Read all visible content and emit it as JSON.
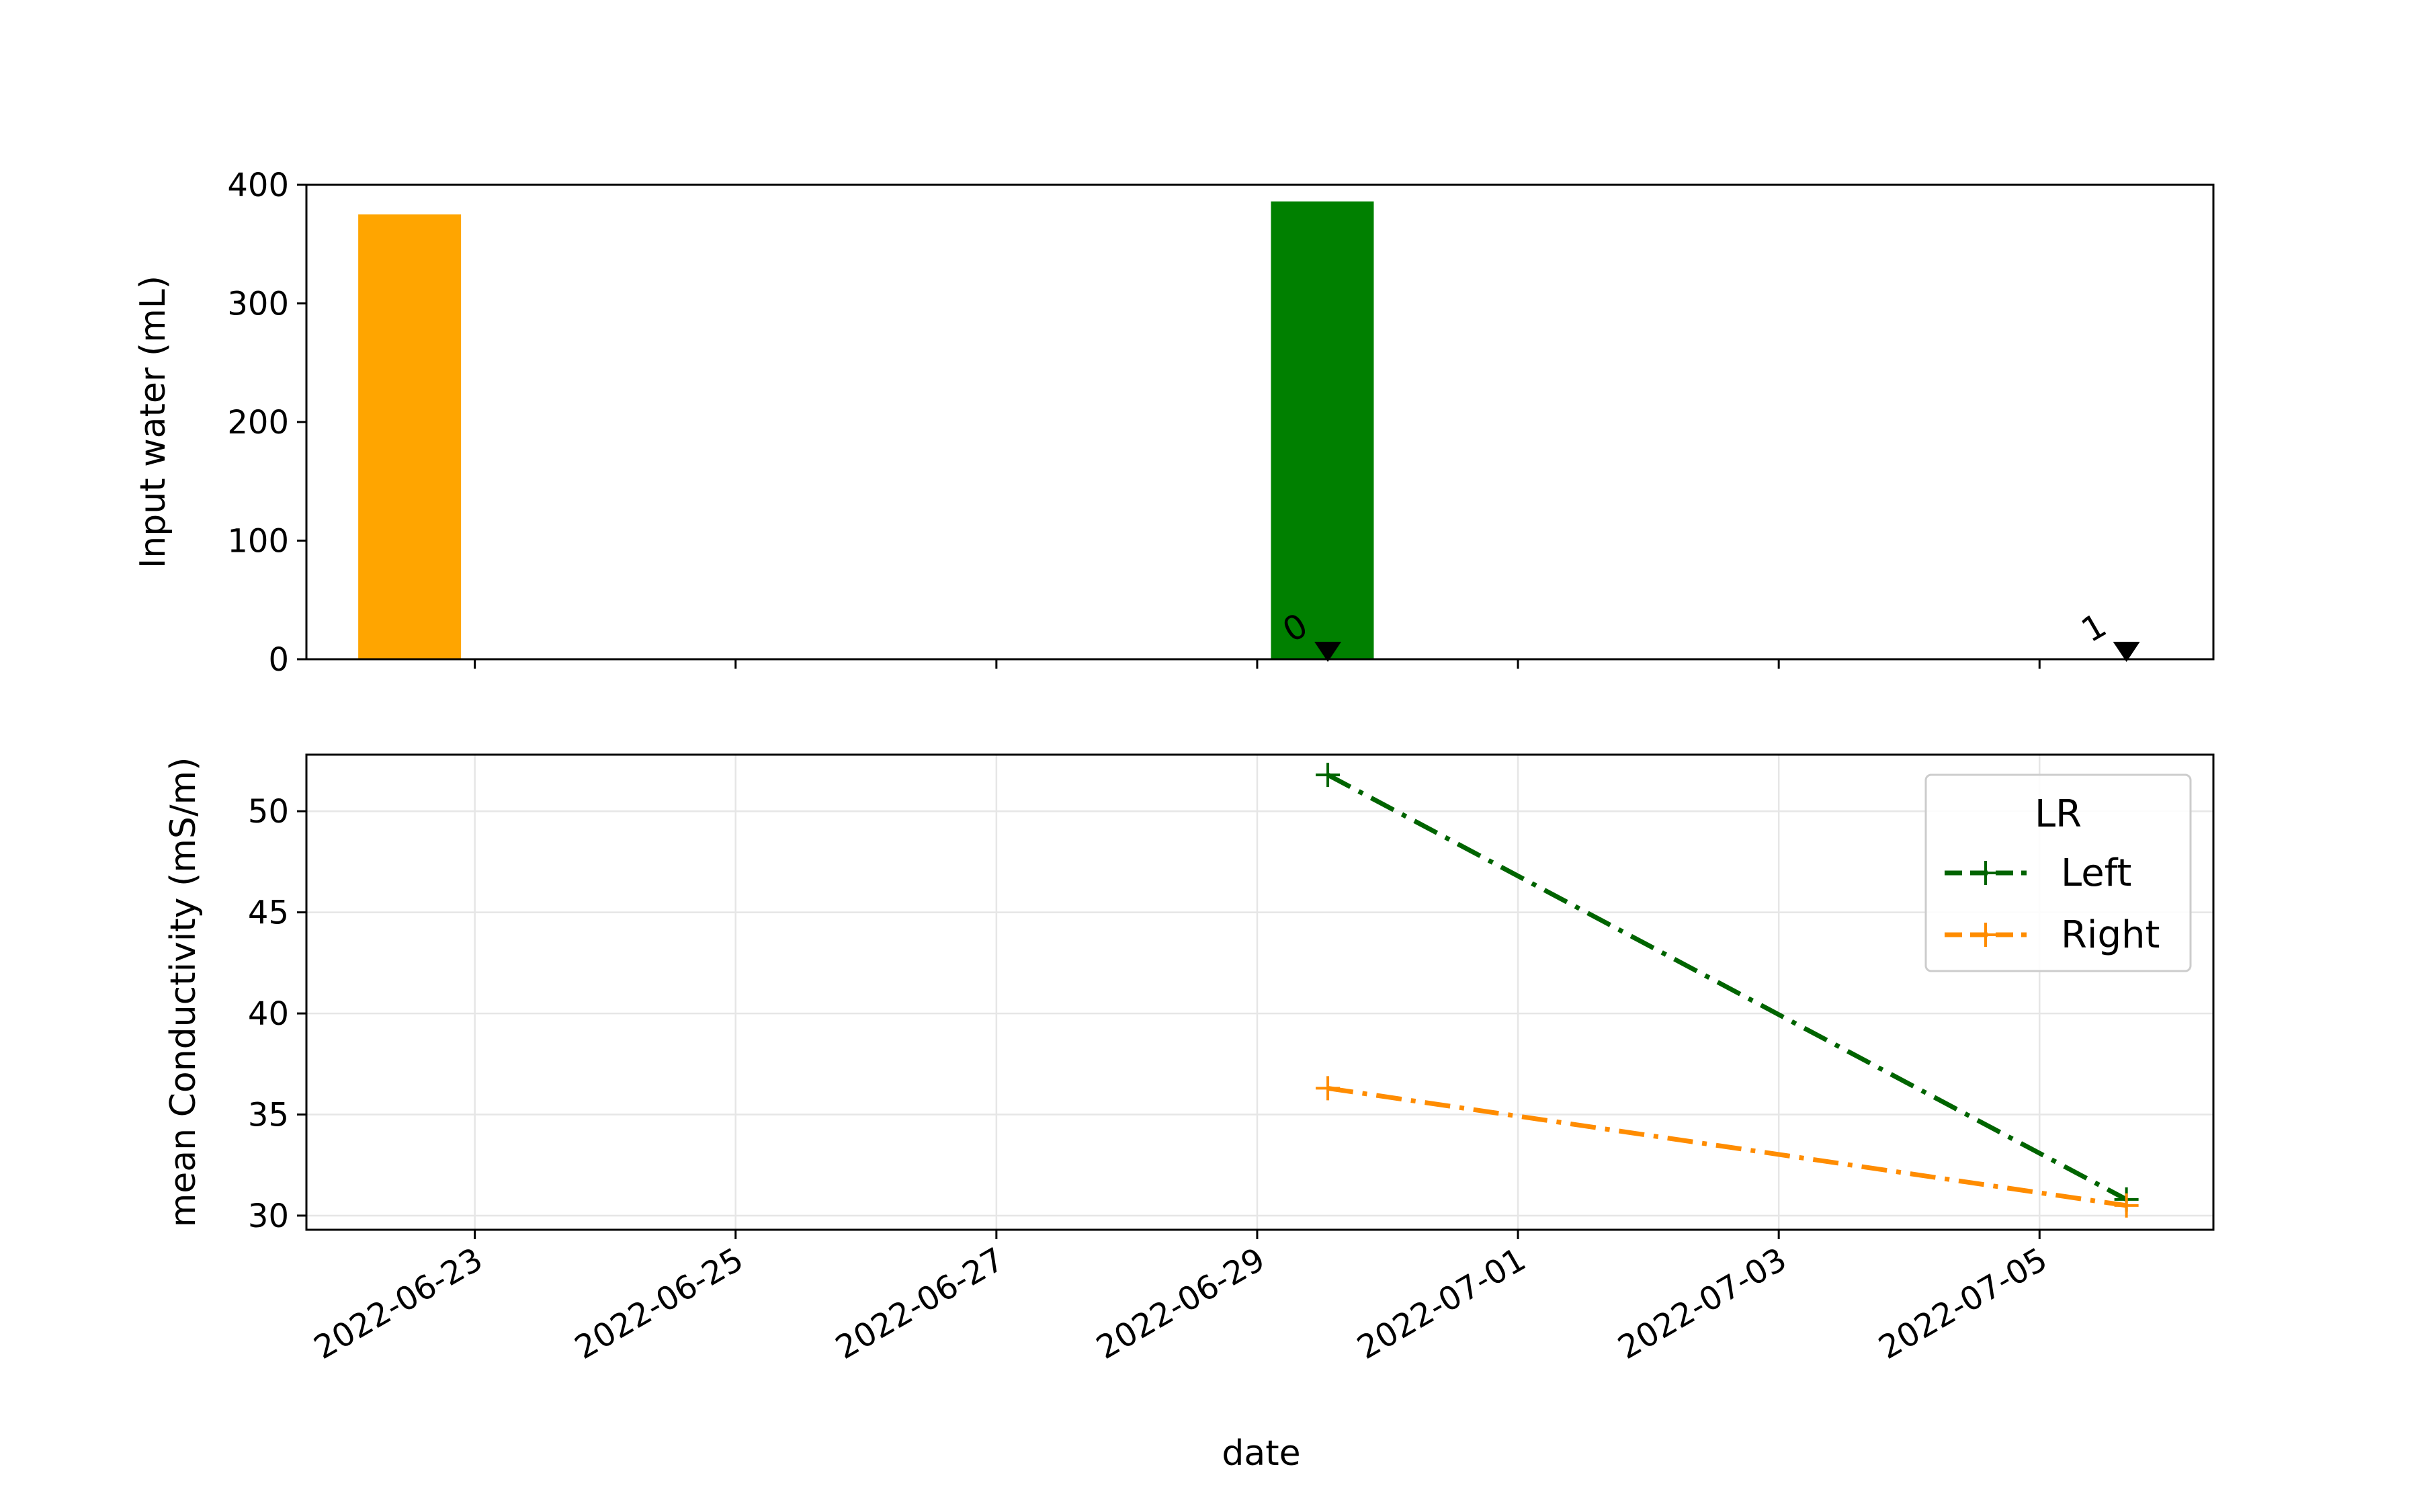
{
  "chart_data": [
    {
      "type": "bar",
      "ylabel": "Input water (mL)",
      "ylim": [
        0,
        400
      ],
      "yticks": [
        0,
        100,
        200,
        300,
        400
      ],
      "xlim": [
        "2022-06-21T17:00",
        "2022-07-06T08:00"
      ],
      "xticks": [
        "2022-06-23",
        "2022-06-25",
        "2022-06-27",
        "2022-06-29",
        "2022-07-01",
        "2022-07-03",
        "2022-07-05"
      ],
      "bars": [
        {
          "x": "2022-06-22T12:00",
          "value": 375,
          "color": "#ffa500"
        },
        {
          "x": "2022-06-29T12:00",
          "value": 386,
          "color": "#008000"
        }
      ],
      "markers": [
        {
          "x": "2022-06-29T13:00",
          "value": 0,
          "label": "0",
          "color": "#000000"
        },
        {
          "x": "2022-07-05T16:00",
          "value": 0,
          "label": "1",
          "color": "#000000"
        }
      ],
      "grid": false
    },
    {
      "type": "line",
      "xlabel": "date",
      "ylabel": "mean Conductivity (mS/m)",
      "ylim": [
        29.3,
        52.8
      ],
      "yticks": [
        30,
        35,
        40,
        45,
        50
      ],
      "xlim": [
        "2022-06-21T17:00",
        "2022-07-06T08:00"
      ],
      "xticks": [
        "2022-06-23",
        "2022-06-25",
        "2022-06-27",
        "2022-06-29",
        "2022-07-01",
        "2022-07-03",
        "2022-07-05"
      ],
      "grid": true,
      "legend": {
        "title": "LR",
        "placement": "upper right"
      },
      "series": [
        {
          "name": "Left",
          "color": "#006400",
          "marker": "plus",
          "points": [
            {
              "x": "2022-06-29T13:00",
              "y": 51.8
            },
            {
              "x": "2022-07-05T16:00",
              "y": 30.8
            }
          ]
        },
        {
          "name": "Right",
          "color": "#ff8c00",
          "marker": "plus",
          "points": [
            {
              "x": "2022-06-29T13:00",
              "y": 36.3
            },
            {
              "x": "2022-07-05T16:00",
              "y": 30.5
            }
          ]
        }
      ]
    }
  ]
}
